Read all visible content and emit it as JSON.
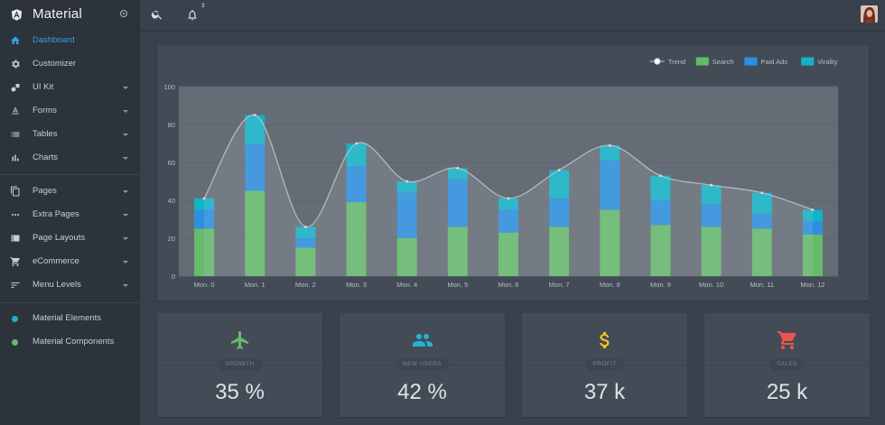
{
  "brand": {
    "title": "Material"
  },
  "colors": {
    "accent": "#2fa1ec",
    "search": "#66bb6a",
    "paid_ads": "#2d8fe0",
    "virality": "#12b4c9",
    "trend": "#b8bec5",
    "growth_icon": "#66bb6a",
    "users_icon": "#26b3d1",
    "profit_icon": "#f7c51c",
    "sales_icon": "#ef5350",
    "dot_elements": "#12b4c9",
    "dot_components": "#66bb6a"
  },
  "sidebar": {
    "items": [
      {
        "label": "Dashboard",
        "icon": "home-icon",
        "active": true
      },
      {
        "label": "Customizer",
        "icon": "gear-icon"
      },
      {
        "label": "UI Kit",
        "icon": "shapes-icon",
        "chevron": true
      },
      {
        "label": "Forms",
        "icon": "text-format-icon",
        "chevron": true
      },
      {
        "label": "Tables",
        "icon": "list-icon",
        "chevron": true
      },
      {
        "label": "Charts",
        "icon": "bar-chart-icon",
        "chevron": true
      },
      {
        "label": "Pages",
        "icon": "copy-icon",
        "chevron": true
      },
      {
        "label": "Extra Pages",
        "icon": "more-horiz-icon",
        "chevron": true
      },
      {
        "label": "Page Layouts",
        "icon": "layout-icon",
        "chevron": true
      },
      {
        "label": "eCommerce",
        "icon": "cart-icon",
        "chevron": true
      },
      {
        "label": "Menu Levels",
        "icon": "sort-icon",
        "chevron": true
      },
      {
        "label": "Material Elements",
        "icon": "dot-icon"
      },
      {
        "label": "Material Components",
        "icon": "dot-icon"
      }
    ]
  },
  "topbar": {
    "notification_count": "3"
  },
  "chart_data": {
    "type": "bar",
    "stacked": true,
    "categories": [
      "Mon. 0",
      "Mon. 1",
      "Mon. 2",
      "Mon. 3",
      "Mon. 4",
      "Mon. 5",
      "Mon. 6",
      "Mon. 7",
      "Mon. 8",
      "Mon. 9",
      "Mon. 10",
      "Mon. 11",
      "Mon. 12"
    ],
    "series": [
      {
        "name": "Search",
        "values": [
          25,
          45,
          15,
          39,
          20,
          26,
          23,
          26,
          35,
          27,
          26,
          25,
          22
        ]
      },
      {
        "name": "Paid Ads",
        "values": [
          10,
          25,
          5,
          19,
          24,
          25,
          12,
          15,
          26,
          13,
          12,
          8,
          7
        ]
      },
      {
        "name": "Virality",
        "values": [
          6,
          15,
          6,
          12,
          6,
          6,
          6,
          15,
          8,
          13,
          10,
          11,
          6
        ]
      }
    ],
    "trend": {
      "name": "Trend",
      "values": [
        41,
        85,
        26,
        70,
        50,
        57,
        41,
        56,
        69,
        53,
        48,
        44,
        35
      ]
    },
    "legend": [
      "Trend",
      "Search",
      "Paid Ads",
      "Virality"
    ],
    "legend_position": "top-right",
    "yticks": [
      "0",
      "20",
      "40",
      "60",
      "80",
      "100"
    ],
    "ylim": [
      0,
      100
    ],
    "grid": true
  },
  "stats": [
    {
      "label": "GROWTH",
      "value": "35 %",
      "icon": "airplane-icon"
    },
    {
      "label": "NEW USERS",
      "value": "42 %",
      "icon": "people-icon"
    },
    {
      "label": "PROFIT",
      "value": "37 k",
      "icon": "dollar-icon"
    },
    {
      "label": "SALES",
      "value": "25 k",
      "icon": "cart-icon"
    }
  ]
}
